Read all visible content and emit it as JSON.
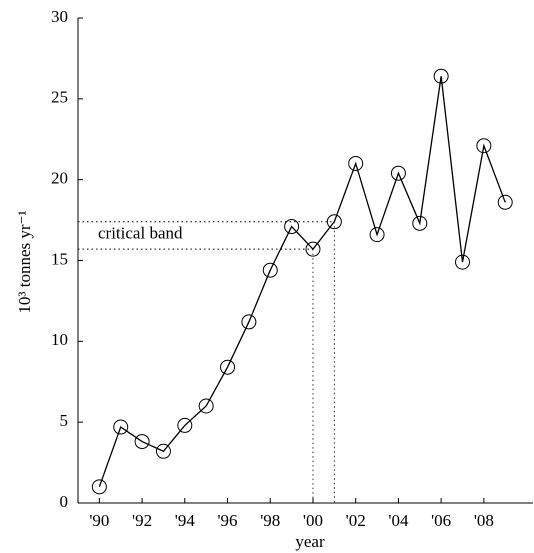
{
  "chart_data": {
    "type": "line",
    "x_label": "year",
    "y_label": "10³ tonnes yr⁻¹",
    "x": [
      1990,
      1991,
      1992,
      1993,
      1994,
      1995,
      1996,
      1997,
      1998,
      1999,
      2000,
      2001,
      2002,
      2003,
      2004,
      2005,
      2006,
      2007,
      2008,
      2009
    ],
    "series": [
      {
        "color": "#000000",
        "values": [
          1.0,
          4.7,
          3.8,
          3.2,
          4.8,
          6.0,
          8.4,
          11.2,
          14.4,
          17.1,
          15.7,
          17.4,
          21.0,
          16.6,
          20.4,
          17.3,
          26.4,
          14.9,
          22.1,
          18.6
        ]
      }
    ],
    "xlim": [
      1989,
      2010.3
    ],
    "ylim": [
      0,
      30
    ],
    "xticks": [
      {
        "value": 1990,
        "label": "'90"
      },
      {
        "value": 1992,
        "label": "'92"
      },
      {
        "value": 1994,
        "label": "'94"
      },
      {
        "value": 1996,
        "label": "'96"
      },
      {
        "value": 1998,
        "label": "'98"
      },
      {
        "value": 2000,
        "label": "'00"
      },
      {
        "value": 2002,
        "label": "'02"
      },
      {
        "value": 2004,
        "label": "'04"
      },
      {
        "value": 2006,
        "label": "'06"
      },
      {
        "value": 2008,
        "label": "'08"
      }
    ],
    "yticks": [
      0,
      5,
      10,
      15,
      20,
      25,
      30
    ],
    "grid": false,
    "critical_band": {
      "label": "critical band",
      "range": [
        15.7,
        17.4
      ],
      "x": [
        2000,
        2001
      ]
    }
  }
}
